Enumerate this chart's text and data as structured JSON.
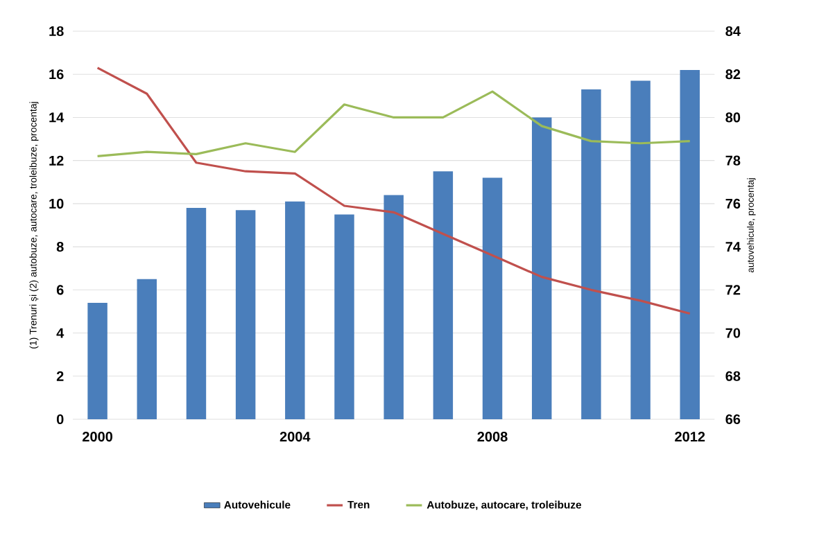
{
  "chart_data": {
    "type": "line",
    "xlabel": null,
    "ylabel": "(1) Trenuri și (2) autobuze, autocare, troleibuze, procentaj",
    "y2label": "autovehicule, procentaj",
    "x": [
      2000,
      2001,
      2002,
      2003,
      2004,
      2005,
      2006,
      2007,
      2008,
      2009,
      2010,
      2011,
      2012
    ],
    "series": [
      {
        "name": "Autovehicule",
        "type": "bar",
        "axis": "y2",
        "color": "#4a7ebb",
        "values": [
          71.4,
          72.5,
          75.8,
          75.7,
          76.1,
          75.5,
          76.4,
          77.5,
          77.2,
          80.0,
          81.3,
          81.7,
          82.2
        ]
      },
      {
        "name": "Tren",
        "color": "#c0504d",
        "values": [
          16.3,
          15.1,
          11.9,
          11.5,
          11.4,
          9.9,
          9.6,
          8.6,
          7.6,
          6.6,
          6.0,
          5.5,
          4.9
        ]
      },
      {
        "name": "Autobuze, autocare, troleibuze",
        "color": "#9bbb59",
        "values": [
          12.2,
          12.4,
          12.3,
          12.8,
          12.4,
          14.6,
          14.0,
          14.0,
          15.2,
          13.6,
          12.9,
          12.8,
          12.9
        ]
      }
    ],
    "xlim": [
      1999.5,
      2012.5
    ],
    "xticks": [
      2000,
      2004,
      2008,
      2012
    ],
    "ylim": [
      0,
      18
    ],
    "yticks": [
      0,
      2,
      4,
      6,
      8,
      10,
      12,
      14,
      16,
      18
    ],
    "y2lim": [
      66,
      84
    ],
    "y2ticks": [
      66,
      68,
      70,
      72,
      74,
      76,
      78,
      80,
      82,
      84
    ],
    "grid": "y",
    "legend": "bottom"
  }
}
